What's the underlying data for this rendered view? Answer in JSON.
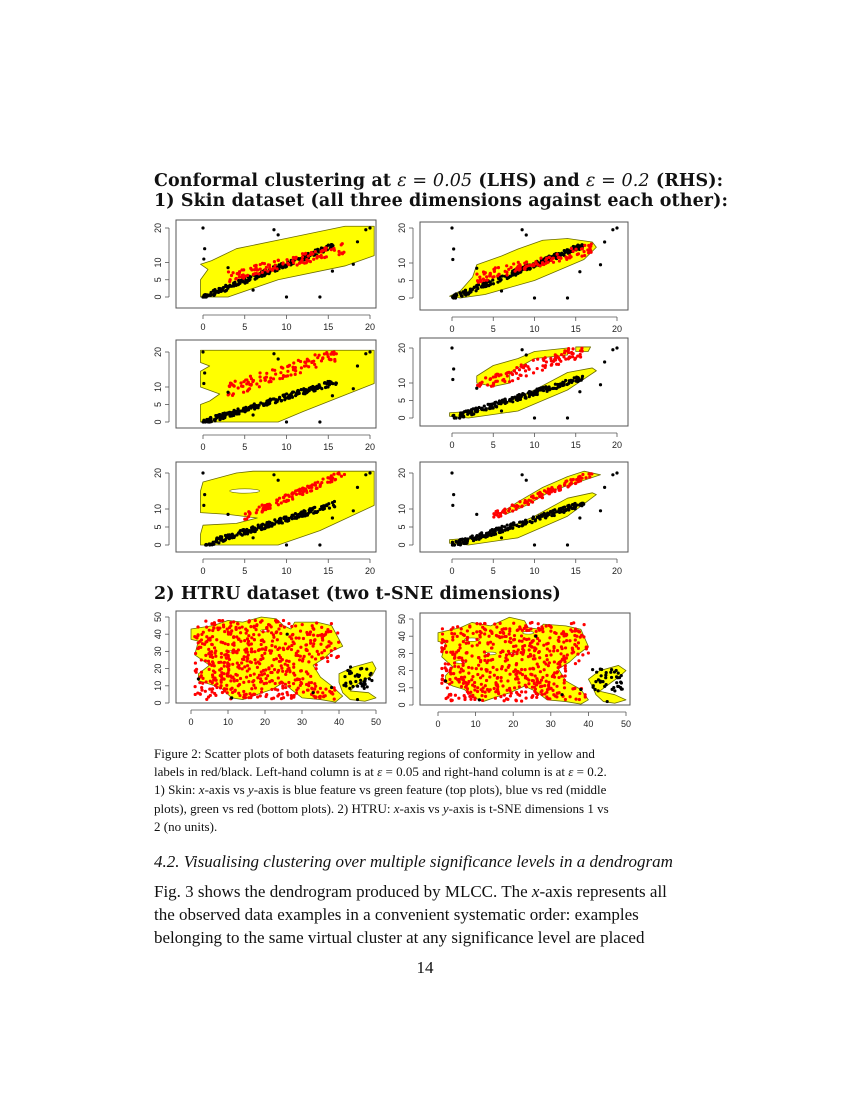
{
  "heading": {
    "line1": {
      "prefix": "Conformal clustering at ",
      "eps1": "ε = 0.05",
      "mid": " (LHS) and ",
      "eps2": "ε = 0.2",
      "suffix": " (RHS):"
    },
    "line2": "1) Skin dataset (all three dimensions against each other):",
    "htru": "2) HTRU dataset (two t-SNE dimensions)"
  },
  "colors": {
    "region": "#ffff00",
    "region_border": "#6b6b00",
    "label_red": "#ff0000",
    "label_black": "#000000",
    "axis": "#555555"
  },
  "chart_data": [
    {
      "type": "scatter",
      "id": "skin-top-lhs",
      "dataset": "Skin",
      "epsilon": 0.05,
      "xlabel": "blue feature",
      "ylabel": "green feature",
      "xlim": [
        0,
        20
      ],
      "ylim": [
        0,
        20
      ],
      "xticks": [
        "0",
        "5",
        "10",
        "15",
        "20"
      ],
      "yticks": [
        "0",
        "5",
        "10",
        "20"
      ],
      "yticklabels": [
        "0",
        "5",
        "10",
        "20"
      ],
      "regions": [
        [
          [
            0,
            0
          ],
          [
            3,
            0
          ],
          [
            9,
            5
          ],
          [
            17,
            9
          ],
          [
            20.5,
            12
          ],
          [
            20.5,
            20.5
          ],
          [
            17,
            20.5
          ],
          [
            10,
            17
          ],
          [
            4,
            14
          ],
          [
            1,
            10.5
          ],
          [
            0,
            10.5
          ],
          [
            0,
            0
          ]
        ]
      ],
      "red_cluster": {
        "center": [
          10,
          11
        ],
        "span": "x 3-17, y 6-17"
      },
      "black_cluster": {
        "trend": "diagonal y≈0.8x from (0,0) to (16,15)"
      }
    },
    {
      "type": "scatter",
      "id": "skin-top-rhs",
      "dataset": "Skin",
      "epsilon": 0.2,
      "xlabel": "blue feature",
      "ylabel": "green feature",
      "xlim": [
        0,
        20
      ],
      "ylim": [
        0,
        20
      ],
      "xticks": [
        "0",
        "5",
        "10",
        "15",
        "20"
      ],
      "yticks": [
        "0",
        "5",
        "10",
        "20"
      ],
      "regions": [
        [
          [
            0,
            0
          ],
          [
            2,
            0
          ],
          [
            10,
            6
          ],
          [
            17,
            14
          ],
          [
            17,
            17
          ],
          [
            13,
            17
          ],
          [
            8,
            13
          ],
          [
            3,
            9
          ],
          [
            0,
            2
          ]
        ]
      ],
      "red_cluster": {
        "span": "x 3-17, y 6-17"
      },
      "black_cluster": {
        "trend": "diagonal from (0,0) to (16,16)"
      }
    },
    {
      "type": "scatter",
      "id": "skin-mid-lhs",
      "dataset": "Skin",
      "epsilon": 0.05,
      "xlabel": "blue feature",
      "ylabel": "red feature",
      "xlim": [
        0,
        20
      ],
      "ylim": [
        0,
        20
      ],
      "xticks": [
        "0",
        "5",
        "10",
        "15",
        "20"
      ],
      "yticks": [
        "0",
        "5",
        "10",
        "20"
      ],
      "regions": [
        [
          [
            0,
            0
          ],
          [
            9,
            0
          ],
          [
            20.5,
            11
          ],
          [
            20.5,
            20.5
          ],
          [
            0,
            20.5
          ],
          [
            0,
            0
          ]
        ]
      ],
      "red_cluster": {
        "span": "x 3-17, y 9-20"
      },
      "black_cluster": {
        "trend": "from (0,0) to (16,14)"
      }
    },
    {
      "type": "scatter",
      "id": "skin-mid-rhs",
      "dataset": "Skin",
      "epsilon": 0.2,
      "xlabel": "blue feature",
      "ylabel": "red feature",
      "xlim": [
        0,
        20
      ],
      "ylim": [
        0,
        20
      ],
      "xticks": [
        "0",
        "5",
        "10",
        "15",
        "20"
      ],
      "yticks": [
        "0",
        "5",
        "10",
        "20"
      ],
      "regions": [
        "upper band x 3-14, y 10-20",
        "small island x 15-16.5, y 19-20",
        "lower band (0,0) to (17,14)"
      ]
    },
    {
      "type": "scatter",
      "id": "skin-bot-lhs",
      "dataset": "Skin",
      "epsilon": 0.05,
      "xlabel": "green feature",
      "ylabel": "red feature",
      "xlim": [
        0,
        20
      ],
      "ylim": [
        0,
        20
      ],
      "xticks": [
        "0",
        "5",
        "10",
        "15",
        "20"
      ],
      "yticks": [
        "0",
        "5",
        "10",
        "20"
      ],
      "regions": [
        "large region covering most of plot with notch at x 0-6, y 5-9 and hole near (5,15)"
      ]
    },
    {
      "type": "scatter",
      "id": "skin-bot-rhs",
      "dataset": "Skin",
      "epsilon": 0.2,
      "xlabel": "green feature",
      "ylabel": "red feature",
      "xlim": [
        0,
        20
      ],
      "ylim": [
        0,
        20
      ],
      "xticks": [
        "0",
        "5",
        "10",
        "15",
        "20"
      ],
      "yticks": [
        "0",
        "5",
        "10",
        "20"
      ],
      "regions": [
        "upper band (6,9) to (18,20)",
        "lower band (0,0) to (17,14)"
      ]
    },
    {
      "type": "scatter",
      "id": "htru-lhs",
      "dataset": "HTRU",
      "epsilon": 0.05,
      "xlabel": "t-SNE dimension 1",
      "ylabel": "t-SNE dimension 2",
      "xlim": [
        0,
        50
      ],
      "ylim": [
        0,
        50
      ],
      "xticks": [
        "0",
        "10",
        "20",
        "30",
        "40",
        "50"
      ],
      "yticks": [
        "0",
        "10",
        "20",
        "30",
        "40",
        "50"
      ],
      "regions": [
        "large blob x 0-41, y 0-50",
        "right cluster x 40-50, y 0-23"
      ]
    },
    {
      "type": "scatter",
      "id": "htru-rhs",
      "dataset": "HTRU",
      "epsilon": 0.2,
      "xlabel": "t-SNE dimension 1",
      "ylabel": "t-SNE dimension 2",
      "xlim": [
        0,
        50
      ],
      "ylim": [
        0,
        50
      ],
      "xticks": [
        "0",
        "10",
        "20",
        "30",
        "40",
        "50"
      ],
      "yticks": [
        "0",
        "10",
        "20",
        "30",
        "40",
        "50"
      ],
      "regions": [
        "large blob with several holes x 0-41, y 0-50",
        "right cluster x 40-50, y 0-23"
      ]
    }
  ],
  "caption": {
    "l1": "Figure 2:  Scatter plots of both datasets featuring regions of conformity in yellow and",
    "l2a": "labels in red/black. Left-hand column is at ",
    "l2b": "ε",
    "l2c": " = 0.05 and right-hand column is at ",
    "l2d": "ε",
    "l2e": " = 0.2.",
    "l3a": "1) Skin: ",
    "l3b": "x",
    "l3c": "-axis vs ",
    "l3d": "y",
    "l3e": "-axis is blue feature vs green feature (top plots), blue vs red (middle",
    "l4a": "plots), green vs red (bottom plots).  2) HTRU: ",
    "l4b": "x",
    "l4c": "-axis vs ",
    "l4d": "y",
    "l4e": "-axis is t-SNE dimensions 1 vs",
    "l5": "2 (no units)."
  },
  "section": "4.2.  Visualising clustering over multiple significance levels in a dendrogram",
  "paragraph": {
    "l1a": "Fig. 3 shows the dendrogram produced by MLCC. The ",
    "l1b": "x",
    "l1c": "-axis represents all",
    "l2": "the observed data examples in a convenient systematic order: examples",
    "l3": "belonging to the same virtual cluster at any significance level are placed"
  },
  "page_number": "14"
}
